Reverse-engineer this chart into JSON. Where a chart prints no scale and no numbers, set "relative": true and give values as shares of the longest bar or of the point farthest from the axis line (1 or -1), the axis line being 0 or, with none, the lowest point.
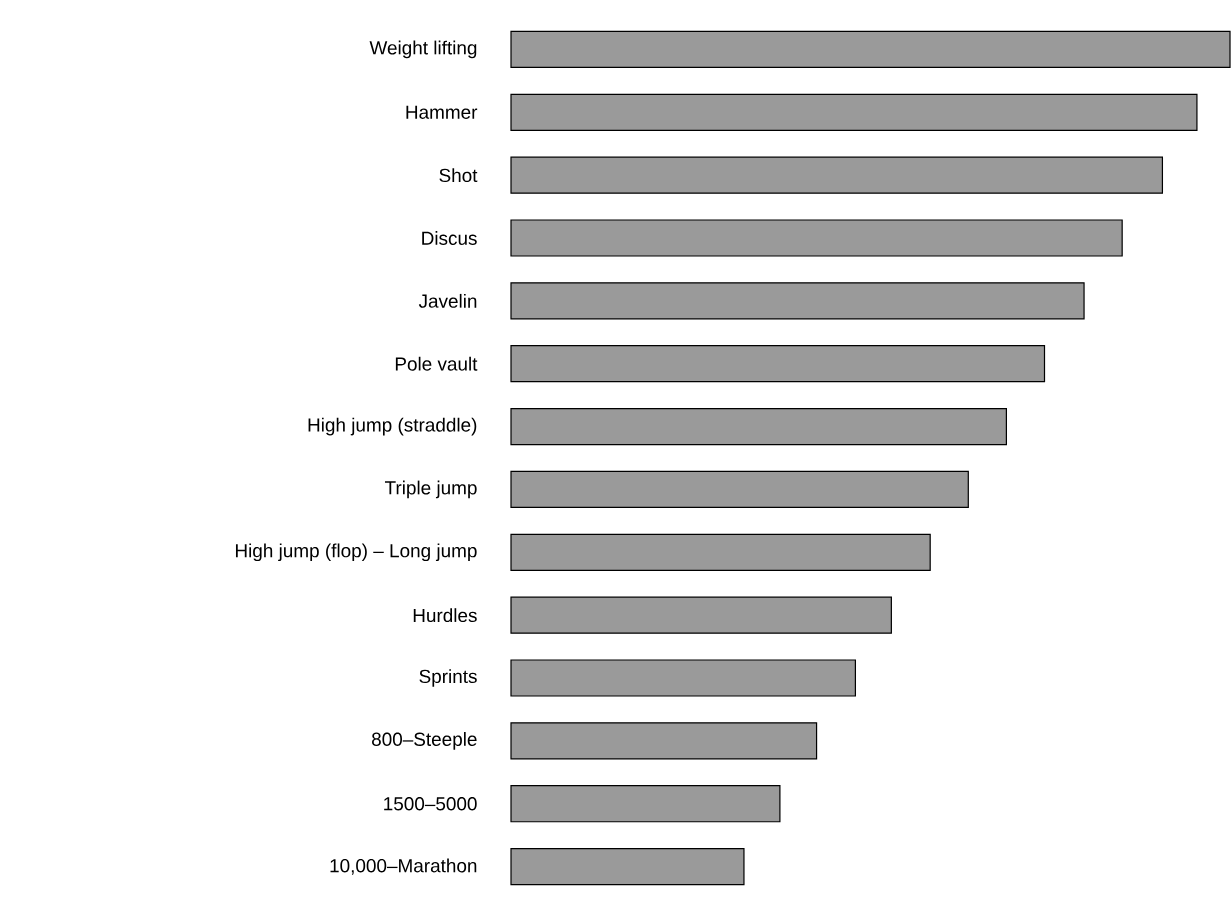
{
  "chart_data": {
    "type": "bar",
    "orientation": "horizontal",
    "relative": true,
    "color": "#9a9a9a",
    "categories": [
      "Weight lifting",
      "Hammer",
      "Shot",
      "Discus",
      "Javelin",
      "Pole vault",
      "High jump (straddle)",
      "Triple jump",
      "High jump (flop) – Long jump",
      "Hurdles",
      "Sprints",
      "800–Steeple",
      "1500–5000",
      "10,000–Marathon"
    ],
    "values": [
      1,
      0.954,
      0.906,
      0.85,
      0.797,
      0.742,
      0.689,
      0.636,
      0.583,
      0.529,
      0.479,
      0.425,
      0.374,
      0.324
    ]
  }
}
